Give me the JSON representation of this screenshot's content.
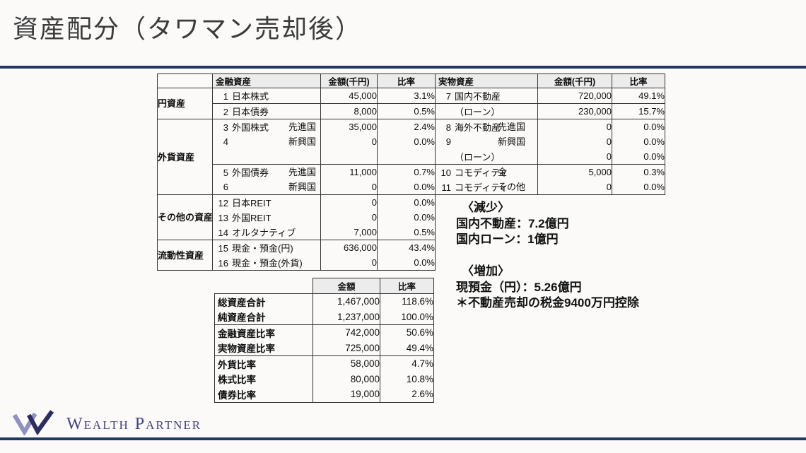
{
  "title": "資産配分（タワマン売却後）",
  "colors": {
    "accent_navy": "#1f3864",
    "header_bg": "#ececec",
    "table_border": "#333333",
    "marker_green": "#2e8b57",
    "logo_purple": "#9191bf",
    "logo_navy": "#2e2e5e",
    "logo_text": "#45457a"
  },
  "main_table": {
    "left_header": [
      "",
      "金融資産",
      "金額(千円)",
      "比率"
    ],
    "right_header": [
      "実物資産",
      "金額(千円)",
      "比率"
    ],
    "left_rows": [
      {
        "group": "円資産",
        "span": 2,
        "num": "1",
        "label": "日本株式",
        "sub": "",
        "amount": "45,000",
        "ratio": "3.1%",
        "rule": false
      },
      {
        "num": "2",
        "label": "日本債券",
        "sub": "",
        "amount": "8,000",
        "ratio": "0.5%",
        "rule": true
      },
      {
        "group": "外貨資産",
        "span": 5,
        "num": "3",
        "label": "外国株式",
        "sub": "先進国",
        "amount": "35,000",
        "ratio": "2.4%",
        "rule": true
      },
      {
        "num": "4",
        "label": "",
        "sub": "新興国",
        "amount": "0",
        "ratio": "0.0%",
        "rule": false
      },
      {
        "num": "",
        "label": "",
        "sub": "",
        "amount": "",
        "ratio": "",
        "rule": false
      },
      {
        "num": "5",
        "label": "外国債券",
        "sub": "先進国",
        "amount": "11,000",
        "ratio": "0.7%",
        "rule": true
      },
      {
        "num": "6",
        "label": "",
        "sub": "新興国",
        "amount": "0",
        "ratio": "0.0%",
        "rule": false
      },
      {
        "group": "その他の資産",
        "span": 3,
        "num": "12",
        "label": "日本REIT",
        "sub": "",
        "amount": "0",
        "ratio": "0.0%",
        "rule": true
      },
      {
        "num": "13",
        "label": "外国REIT",
        "sub": "",
        "amount": "0",
        "ratio": "0.0%",
        "rule": false
      },
      {
        "num": "14",
        "label": "オルタナティブ",
        "sub": "",
        "amount": "7,000",
        "ratio": "0.5%",
        "rule": false
      },
      {
        "group": "流動性資産",
        "span": 2,
        "num": "15",
        "label": "現金・預金(円)",
        "sub": "",
        "amount": "636,000",
        "ratio": "43.4%",
        "rule": true
      },
      {
        "num": "16",
        "label": "現金・預金(外貨)",
        "sub": "",
        "amount": "0",
        "ratio": "0.0%",
        "rule": false
      }
    ],
    "right_rows": [
      {
        "num": "7",
        "label": "国内不動産",
        "sub": "",
        "amount": "720,000",
        "ratio": "49.1%",
        "rule": false
      },
      {
        "num": "",
        "label": "（ローン）",
        "sub": "",
        "amount": "230,000",
        "ratio": "15.7%",
        "rule": true
      },
      {
        "num": "8",
        "label": "海外不動産",
        "sub": "先進国",
        "amount": "0",
        "ratio": "0.0%",
        "rule": true
      },
      {
        "num": "9",
        "label": "",
        "sub": "新興国",
        "amount": "0",
        "ratio": "0.0%",
        "rule": false
      },
      {
        "num": "",
        "label": "（ローン）",
        "sub": "",
        "amount": "0",
        "ratio": "0.0%",
        "rule": false
      },
      {
        "num": "10",
        "label": "コモディティ",
        "sub": "金",
        "amount": "5,000",
        "ratio": "0.3%",
        "rule": true
      },
      {
        "num": "11",
        "label": "コモディティ",
        "sub": "その他",
        "amount": "0",
        "ratio": "0.0%",
        "rule": false
      }
    ]
  },
  "summary_table": {
    "header": [
      "金額",
      "比率"
    ],
    "rows": [
      {
        "label": "総資産合計",
        "amount": "1,467,000",
        "ratio": "118.6%",
        "rule": true,
        "marker": false
      },
      {
        "label": "純資産合計",
        "amount": "1,237,000",
        "ratio": "100.0%",
        "rule": false,
        "marker": false
      },
      {
        "label": "金融資産比率",
        "amount": "742,000",
        "ratio": "50.6%",
        "rule": true,
        "marker": false
      },
      {
        "label": "実物資産比率",
        "amount": "725,000",
        "ratio": "49.4%",
        "rule": false,
        "marker": false
      },
      {
        "label": "外貨比率",
        "amount": "58,000",
        "ratio": "4.7%",
        "rule": true,
        "marker": true
      },
      {
        "label": "株式比率",
        "amount": "80,000",
        "ratio": "10.8%",
        "rule": false,
        "marker": false
      },
      {
        "label": "債券比率",
        "amount": "19,000",
        "ratio": "2.6%",
        "rule": false,
        "marker": false
      }
    ]
  },
  "notes": {
    "decrease_title": "〈減少〉",
    "decrease_lines": [
      "国内不動産：7.2億円",
      "国内ローン：1億円"
    ],
    "increase_title": "〈増加〉",
    "increase_lines": [
      "現預金（円）：5.26億円",
      "＊不動産売却の税金9400万円控除"
    ]
  },
  "logo": {
    "brand": "Wealth Partner"
  }
}
